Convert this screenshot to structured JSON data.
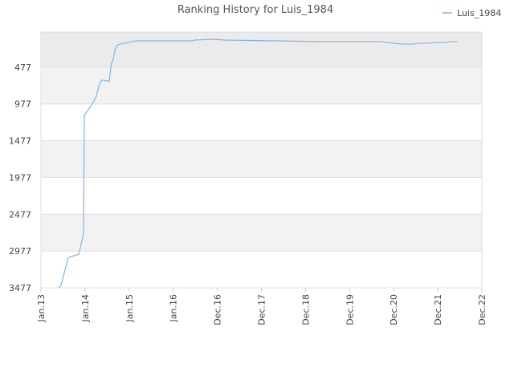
{
  "chart_data": {
    "type": "line",
    "title": "Ranking History for Luis_1984",
    "x": [
      146,
      166,
      226,
      312,
      326,
      352,
      359,
      379,
      425,
      459,
      485,
      505,
      545,
      565,
      572,
      585,
      598,
      612,
      625,
      638,
      658,
      698,
      745,
      791,
      1256,
      1270,
      1423,
      1522,
      1955,
      2320,
      2819,
      2918,
      2985,
      3085,
      3118,
      3218,
      3251,
      3351,
      3384,
      3450
    ],
    "series": [
      {
        "name": "Luis_1984",
        "color": "#7cb5ec",
        "values": [
          3476,
          3445,
          3064,
          3021,
          2934,
          2738,
          1129,
          1086,
          977,
          869,
          695,
          651,
          662,
          673,
          564,
          412,
          379,
          238,
          195,
          173,
          162,
          151,
          129,
          119,
          119,
          108,
          97,
          108,
          119,
          129,
          129,
          151,
          162,
          162,
          151,
          151,
          140,
          140,
          129,
          129
        ]
      }
    ],
    "xlim": [
      0,
      3650
    ],
    "xticks": [
      {
        "value": 0,
        "label": "Jan.13"
      },
      {
        "value": 365,
        "label": "Jan.14"
      },
      {
        "value": 730,
        "label": "Jan.15"
      },
      {
        "value": 1095,
        "label": "Jan.16"
      },
      {
        "value": 1460,
        "label": "Dec.16"
      },
      {
        "value": 1825,
        "label": "Dec.17"
      },
      {
        "value": 2190,
        "label": "Dec.18"
      },
      {
        "value": 2555,
        "label": "Dec.19"
      },
      {
        "value": 2920,
        "label": "Dec.20"
      },
      {
        "value": 3285,
        "label": "Dec.21"
      },
      {
        "value": 3650,
        "label": "Dec.22"
      }
    ],
    "ylim": [
      3477,
      -1
    ],
    "yticks": [
      477,
      977,
      1477,
      1977,
      2477,
      2977,
      3477
    ],
    "grid": true,
    "legend": "top-right"
  }
}
